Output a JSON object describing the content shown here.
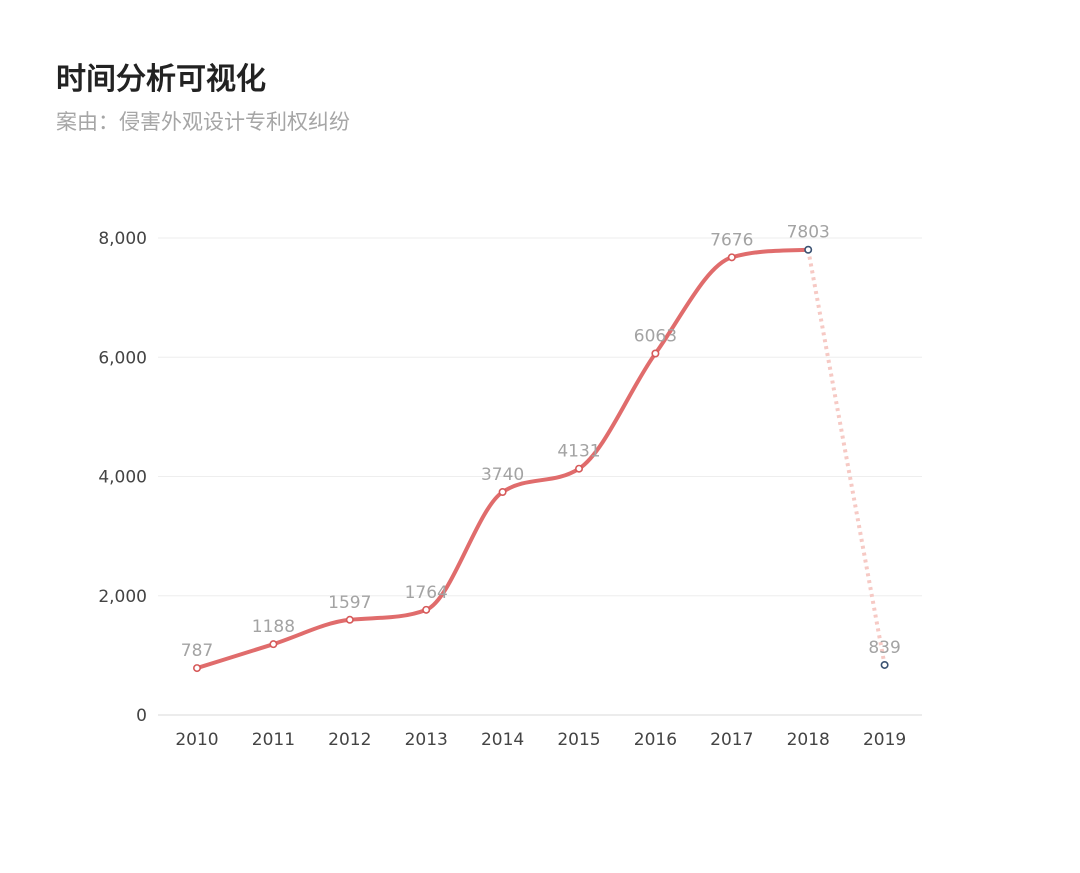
{
  "header": {
    "title": "时间分析可视化",
    "subtitle": "案由：侵害外观设计专利权纠纷"
  },
  "colors": {
    "line": "#e06c6c",
    "projection_line": "#f6c9c4",
    "grid": "#eeeeee",
    "axis": "#d9d9d9",
    "point_fill": "#ffffff",
    "point_stroke_main": "#d65a5a",
    "point_stroke_highlight": "#3b5272"
  },
  "chart_data": {
    "type": "line",
    "title": "",
    "xlabel": "",
    "ylabel": "",
    "categories": [
      "2010",
      "2011",
      "2012",
      "2013",
      "2014",
      "2015",
      "2016",
      "2017",
      "2018",
      "2019"
    ],
    "values": [
      787,
      1188,
      1597,
      1764,
      3740,
      4131,
      6063,
      7676,
      7803,
      839
    ],
    "ylim": [
      0,
      8000
    ],
    "yticks": [
      0,
      2000,
      4000,
      6000,
      8000
    ],
    "ytick_labels": [
      "0",
      "2,000",
      "4,000",
      "6,000",
      "8,000"
    ],
    "solid_through_index": 8,
    "dotted_from_index": 8,
    "grid": true,
    "legend": "none"
  }
}
